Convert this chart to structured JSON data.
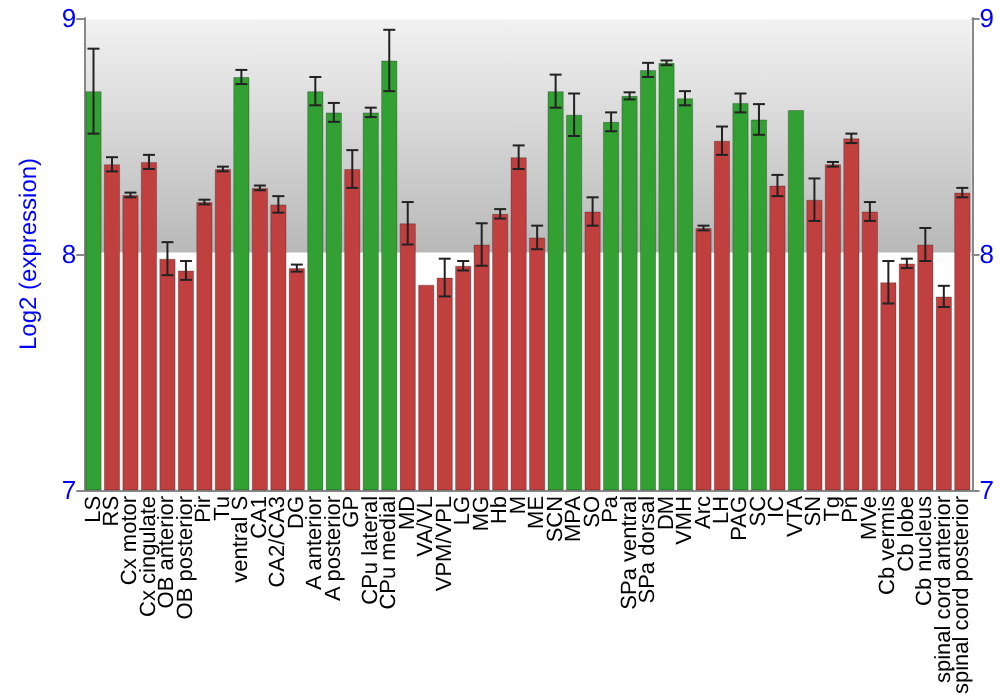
{
  "chart_data": {
    "type": "bar",
    "ylabel": "Log2 (expression)",
    "categories": [
      "LS",
      "RS",
      "Cx motor",
      "Cx cingulate",
      "OB anterior",
      "OB posterior",
      "Pir",
      "Tu",
      "ventral S",
      "CA1",
      "CA2/CA3",
      "DG",
      "A anterior",
      "A posterior",
      "GP",
      "CPu lateral",
      "CPu medial",
      "MD",
      "VA/VL",
      "VPM/VPL",
      "LG",
      "MG",
      "Hb",
      "M",
      "ME",
      "SCN",
      "MPA",
      "SO",
      "Pa",
      "SPa ventral",
      "SPa dorsal",
      "DM",
      "VMH",
      "Arc",
      "LH",
      "PAG",
      "SC",
      "IC",
      "VTA",
      "SN",
      "Tg",
      "Pn",
      "MVe",
      "Cb vermis",
      "Cb lobe",
      "Cb nucleus",
      "spinal cord anterior",
      "spinal cord posterior"
    ],
    "values": [
      8.69,
      8.38,
      8.25,
      8.39,
      7.98,
      7.93,
      8.22,
      8.36,
      8.75,
      8.28,
      8.21,
      7.94,
      8.69,
      8.6,
      8.36,
      8.6,
      8.82,
      8.13,
      7.87,
      7.9,
      7.95,
      8.04,
      8.17,
      8.41,
      8.07,
      8.69,
      8.59,
      8.18,
      8.56,
      8.67,
      8.78,
      8.81,
      8.66,
      8.11,
      8.48,
      8.64,
      8.57,
      8.29,
      8.61,
      8.23,
      8.38,
      8.49,
      8.18,
      7.88,
      7.96,
      8.04,
      7.82,
      8.26
    ],
    "errors": [
      0.18,
      0.03,
      0.01,
      0.03,
      0.07,
      0.04,
      0.01,
      0.01,
      0.03,
      0.01,
      0.035,
      0.015,
      0.06,
      0.04,
      0.08,
      0.02,
      0.13,
      0.09,
      null,
      0.08,
      0.02,
      0.09,
      0.02,
      0.05,
      0.05,
      0.07,
      0.09,
      0.06,
      0.04,
      0.015,
      0.03,
      0.01,
      0.03,
      0.01,
      0.06,
      0.04,
      0.065,
      0.045,
      null,
      0.09,
      0.01,
      0.02,
      0.04,
      0.09,
      0.02,
      0.07,
      0.045,
      0.02
    ],
    "colors": [
      "#33a033",
      "#c04040",
      "#c04040",
      "#c04040",
      "#c04040",
      "#c04040",
      "#c04040",
      "#c04040",
      "#33a033",
      "#c04040",
      "#c04040",
      "#c04040",
      "#33a033",
      "#33a033",
      "#c04040",
      "#33a033",
      "#33a033",
      "#c04040",
      "#c04040",
      "#c04040",
      "#c04040",
      "#c04040",
      "#c04040",
      "#c04040",
      "#c04040",
      "#33a033",
      "#33a033",
      "#c04040",
      "#33a033",
      "#33a033",
      "#33a033",
      "#33a033",
      "#33a033",
      "#c04040",
      "#c04040",
      "#33a033",
      "#33a033",
      "#c04040",
      "#33a033",
      "#c04040",
      "#c04040",
      "#c04040",
      "#c04040",
      "#c04040",
      "#c04040",
      "#c04040",
      "#c04040",
      "#c04040"
    ],
    "ylim": [
      7,
      9
    ],
    "yticks": [
      7,
      8,
      9
    ],
    "y2lim": [
      7,
      9
    ],
    "y2ticks": [
      7,
      8,
      9
    ],
    "grid": "y"
  }
}
